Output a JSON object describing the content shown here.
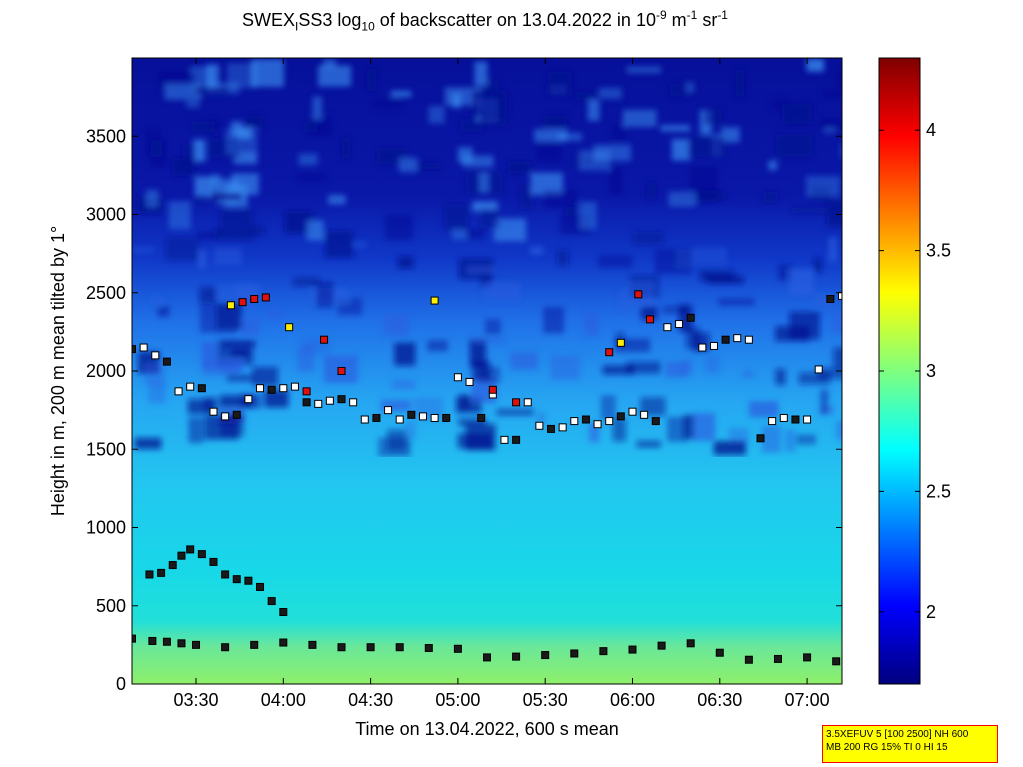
{
  "title": {
    "prefix": "SWEX",
    "sub1": "I",
    "mid": "SS3 log",
    "sub2": "10",
    "suffix": " of backscatter on 13.04.2022 in 10",
    "sup1": "-9",
    "unit1": " m",
    "sup2": "-1",
    "unit2": " sr",
    "sup3": "-1"
  },
  "chart_data": {
    "type": "heatmap",
    "xlabel": "Time on 13.04.2022, 600 s mean",
    "ylabel": "Height in m, 200 m mean tilted by 1°",
    "x_ticks": [
      "03:30",
      "04:00",
      "04:30",
      "05:00",
      "05:30",
      "06:00",
      "06:30",
      "07:00"
    ],
    "x_range": [
      "03:08",
      "07:12"
    ],
    "y_ticks": [
      0,
      500,
      1000,
      1500,
      2000,
      2500,
      3000,
      3500
    ],
    "y_range": [
      0,
      4000
    ],
    "colorbar": {
      "colormap": "jet",
      "range": [
        1.7,
        4.3
      ],
      "ticks": [
        2,
        2.5,
        3,
        3.5,
        4
      ]
    },
    "field_description": {
      "near_surface_value": 2.9,
      "boundary_layer_value": 2.65,
      "mid_layer_value": 2.45,
      "upper_value": 1.9
    },
    "series": [
      {
        "style": "black-squares",
        "times": [
          "03:08",
          "03:15",
          "03:20",
          "03:25",
          "03:30",
          "03:40",
          "03:50",
          "04:00",
          "04:10",
          "04:20",
          "04:30",
          "04:40",
          "04:50",
          "05:00",
          "05:10",
          "05:20",
          "05:30",
          "05:40",
          "05:50",
          "06:00",
          "06:10",
          "06:20",
          "06:30",
          "06:40",
          "06:50",
          "07:00",
          "07:10"
        ],
        "heights": [
          290,
          275,
          270,
          260,
          250,
          235,
          250,
          265,
          250,
          235,
          235,
          235,
          230,
          225,
          170,
          175,
          185,
          195,
          210,
          220,
          245,
          260,
          200,
          155,
          160,
          170,
          145
        ]
      },
      {
        "style": "black-squares",
        "times": [
          "03:14",
          "03:18",
          "03:22",
          "03:25",
          "03:28",
          "03:32",
          "03:36",
          "03:40",
          "03:44",
          "03:48",
          "03:52",
          "03:56",
          "04:00"
        ],
        "heights": [
          700,
          710,
          760,
          820,
          860,
          830,
          780,
          700,
          670,
          660,
          620,
          530,
          460
        ]
      },
      {
        "style": "mixed-squares",
        "times": [
          "03:08",
          "03:12",
          "03:16",
          "03:20",
          "03:24",
          "03:28",
          "03:32",
          "03:36",
          "03:40",
          "03:44",
          "03:48",
          "03:52",
          "03:56",
          "04:00",
          "04:04",
          "04:08",
          "04:12",
          "04:16",
          "04:20",
          "04:24",
          "04:28",
          "04:32",
          "04:36",
          "04:40",
          "04:44",
          "04:48",
          "04:52",
          "04:56",
          "05:00",
          "05:04",
          "05:08",
          "05:12",
          "05:16",
          "05:20",
          "05:24",
          "05:28",
          "05:32",
          "05:36",
          "05:40",
          "05:44",
          "05:48",
          "05:52",
          "05:56",
          "06:00",
          "06:04",
          "06:08",
          "06:12",
          "06:16",
          "06:20",
          "06:24",
          "06:28",
          "06:32",
          "06:36",
          "06:40",
          "06:44",
          "06:48",
          "06:52",
          "06:56",
          "07:00",
          "07:04",
          "07:08",
          "07:12"
        ],
        "heights": [
          2140,
          2150,
          2100,
          2060,
          1870,
          1900,
          1890,
          1740,
          1710,
          1720,
          1820,
          1890,
          1880,
          1890,
          1900,
          1800,
          1790,
          1810,
          1820,
          1800,
          1690,
          1700,
          1750,
          1690,
          1720,
          1710,
          1700,
          1700,
          1960,
          1930,
          1700,
          1850,
          1560,
          1560,
          1800,
          1650,
          1630,
          1640,
          1680,
          1690,
          1660,
          1680,
          1710,
          1740,
          1720,
          1680,
          2280,
          2300,
          2340,
          2150,
          2160,
          2200,
          2210,
          2200,
          1570,
          1680,
          1700,
          1690,
          1690,
          2010,
          2460,
          2480
        ]
      },
      {
        "style": "red-yellow-squares",
        "times": [
          "03:42",
          "03:46",
          "03:50",
          "03:54",
          "04:02",
          "04:08",
          "04:14",
          "04:20",
          "04:52",
          "05:12",
          "05:20",
          "05:52",
          "05:56",
          "06:02",
          "06:06"
        ],
        "heights": [
          2420,
          2440,
          2460,
          2470,
          2280,
          1870,
          2200,
          2000,
          2450,
          1880,
          1800,
          2120,
          2180,
          2490,
          2330
        ]
      }
    ]
  },
  "badge": {
    "line1": "3.5XEFUV 5 [100 2500] NH 600",
    "line2": "MB 200 RG 15% TI 0 HI 15"
  }
}
